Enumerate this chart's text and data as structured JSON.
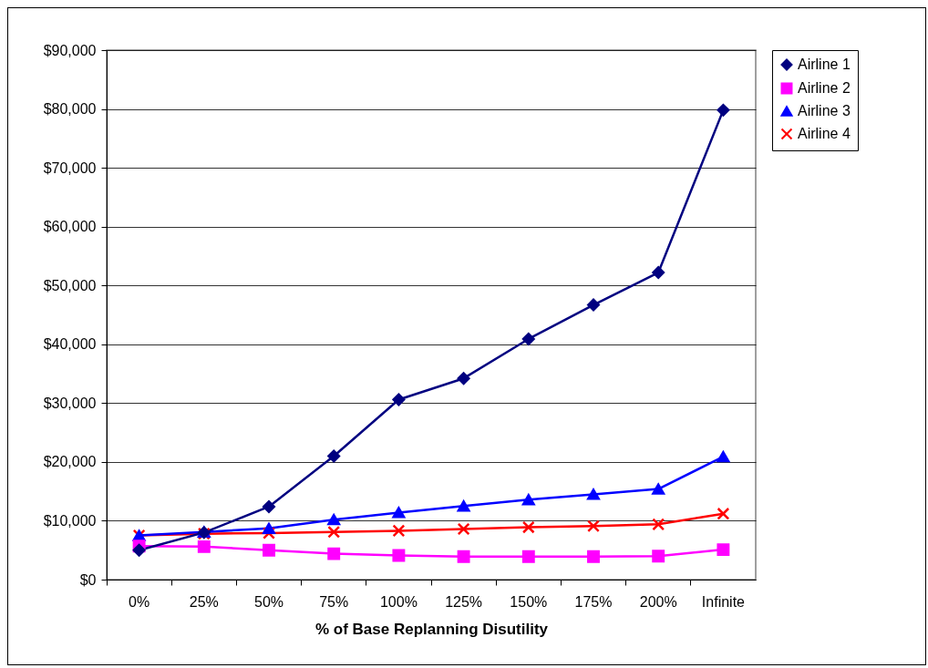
{
  "chart_data": {
    "type": "line",
    "xlabel": "% of Base Replanning Disutility",
    "categories": [
      "0%",
      "25%",
      "50%",
      "75%",
      "100%",
      "125%",
      "150%",
      "175%",
      "200%",
      "Infinite"
    ],
    "series": [
      {
        "name": "Airline 1",
        "color": "#000080",
        "marker": "diamond",
        "values": [
          5000,
          8000,
          12400,
          21000,
          30600,
          34200,
          40900,
          46700,
          52200,
          79800
        ]
      },
      {
        "name": "Airline 2",
        "color": "#ff00ff",
        "marker": "square",
        "values": [
          5700,
          5600,
          5000,
          4400,
          4100,
          3900,
          3900,
          3900,
          4000,
          5100
        ]
      },
      {
        "name": "Airline 3",
        "color": "#0000ff",
        "marker": "triangle",
        "values": [
          7500,
          8100,
          8700,
          10200,
          11400,
          12500,
          13600,
          14500,
          15400,
          20900
        ]
      },
      {
        "name": "Airline 4",
        "color": "#ff0000",
        "marker": "cross",
        "values": [
          7500,
          7800,
          7900,
          8100,
          8300,
          8600,
          8900,
          9100,
          9400,
          11200
        ]
      }
    ],
    "ylim": [
      0,
      90000
    ],
    "yticks": [
      {
        "value": 0,
        "label": "$0"
      },
      {
        "value": 10000,
        "label": "$10,000"
      },
      {
        "value": 20000,
        "label": "$20,000"
      },
      {
        "value": 30000,
        "label": "$30,000"
      },
      {
        "value": 40000,
        "label": "$40,000"
      },
      {
        "value": 50000,
        "label": "$50,000"
      },
      {
        "value": 60000,
        "label": "$60,000"
      },
      {
        "value": 70000,
        "label": "$70,000"
      },
      {
        "value": 80000,
        "label": "$80,000"
      },
      {
        "value": 90000,
        "label": "$90,000"
      }
    ],
    "grid": "y",
    "legend": "right",
    "line_style": "solid"
  }
}
